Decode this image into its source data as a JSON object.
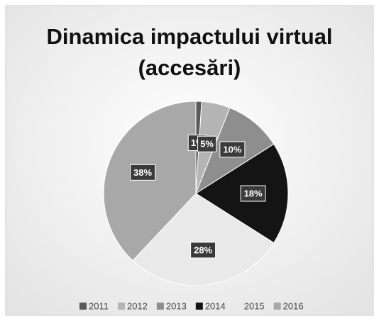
{
  "chart_data": {
    "type": "pie",
    "title": "Dinamica impactului virtual (accesări)",
    "categories": [
      "2011",
      "2012",
      "2013",
      "2014",
      "2015",
      "2016"
    ],
    "values": [
      1,
      5,
      10,
      18,
      28,
      38
    ],
    "value_labels": [
      "1%",
      "5%",
      "10%",
      "18%",
      "28%",
      "38%"
    ],
    "colors": [
      "#595959",
      "#b4b4b4",
      "#8e8e8e",
      "#141414",
      "#e9e9e9",
      "#a8a8a8"
    ],
    "legend": "bottom"
  }
}
